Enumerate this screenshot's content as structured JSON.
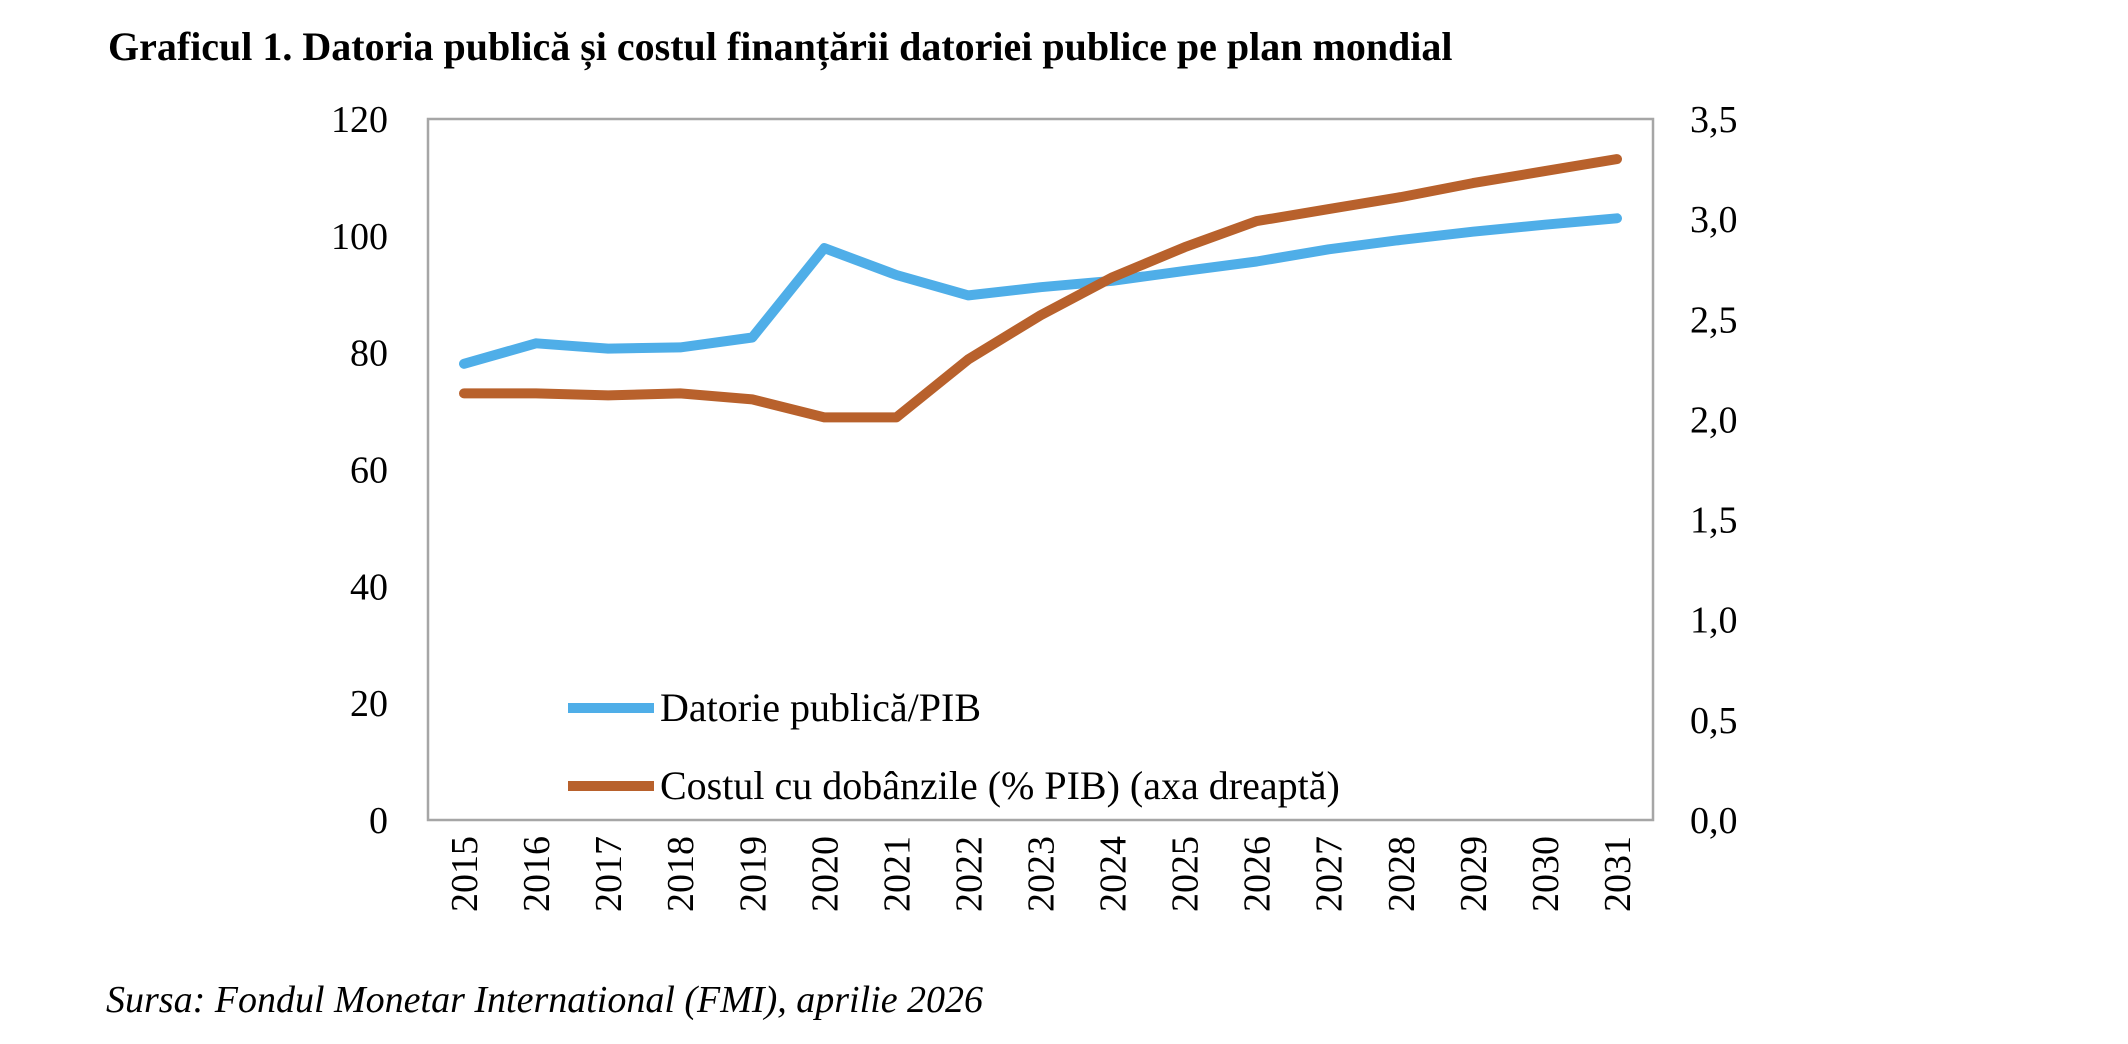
{
  "chart_data": {
    "type": "line",
    "title": "Graficul 1. Datoria publică și costul finanțării datoriei publice pe plan mondial",
    "source": "Sursa: Fondul Monetar International (FMI), aprilie 2026",
    "categories": [
      "2015",
      "2016",
      "2017",
      "2018",
      "2019",
      "2020",
      "2021",
      "2022",
      "2023",
      "2024",
      "2025",
      "2026",
      "2027",
      "2028",
      "2029",
      "2030",
      "2031"
    ],
    "y_left": {
      "ylim": [
        0,
        120
      ],
      "ticks": [
        "0",
        "20",
        "40",
        "60",
        "80",
        "100",
        "120"
      ]
    },
    "y_right": {
      "ylim": [
        0,
        3.5
      ],
      "ticks": [
        "0,0",
        "0,5",
        "1,0",
        "1,5",
        "2,0",
        "2,5",
        "3,0",
        "3,5"
      ]
    },
    "grid": false,
    "legend_position": "bottom-left inside plot",
    "series": [
      {
        "name": "Datorie publică/PIB",
        "axis": "left",
        "color": "#4FAEE8",
        "values": [
          78.1,
          81.6,
          80.7,
          80.9,
          82.6,
          97.9,
          93.3,
          89.8,
          91.2,
          92.3,
          94.0,
          95.6,
          97.7,
          99.3,
          100.7,
          101.9,
          103.0
        ]
      },
      {
        "name": "Costul cu dobânzile (% PIB) (axa dreaptă)",
        "axis": "right",
        "color": "#B8612C",
        "values": [
          2.13,
          2.13,
          2.12,
          2.13,
          2.1,
          2.01,
          2.01,
          2.3,
          2.52,
          2.71,
          2.86,
          2.99,
          3.05,
          3.11,
          3.18,
          3.24,
          3.3
        ]
      }
    ]
  }
}
